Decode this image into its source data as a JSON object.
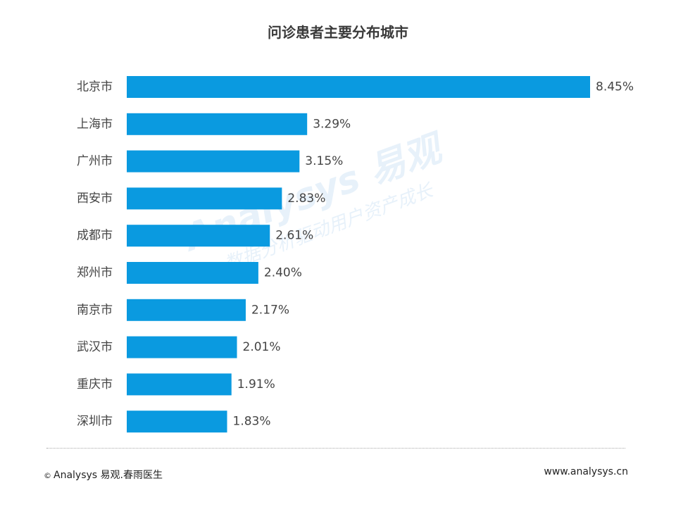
{
  "chart_data": {
    "type": "bar",
    "orientation": "horizontal",
    "title": "问诊患者主要分布城市",
    "categories": [
      "北京市",
      "上海市",
      "广州市",
      "西安市",
      "成都市",
      "郑州市",
      "南京市",
      "武汉市",
      "重庆市",
      "深圳市"
    ],
    "values": [
      8.45,
      3.29,
      3.15,
      2.83,
      2.61,
      2.4,
      2.17,
      2.01,
      1.91,
      1.83
    ],
    "value_labels": [
      "8.45%",
      "3.29%",
      "3.15%",
      "2.83%",
      "2.61%",
      "2.40%",
      "2.17%",
      "2.01%",
      "1.91%",
      "1.83%"
    ],
    "xlim": [
      0,
      8.45
    ],
    "xlabel": "",
    "ylabel": "",
    "grid": false,
    "legend": "none",
    "bar_color": "#0a9ae0"
  },
  "watermark": {
    "main": "Analysys 易观",
    "sub": "数据分析驱动用户资产成长"
  },
  "footer": {
    "copyright_symbol": "©",
    "left_text": "Analysys 易观.春雨医生",
    "right_text": "www.analysys.cn"
  }
}
